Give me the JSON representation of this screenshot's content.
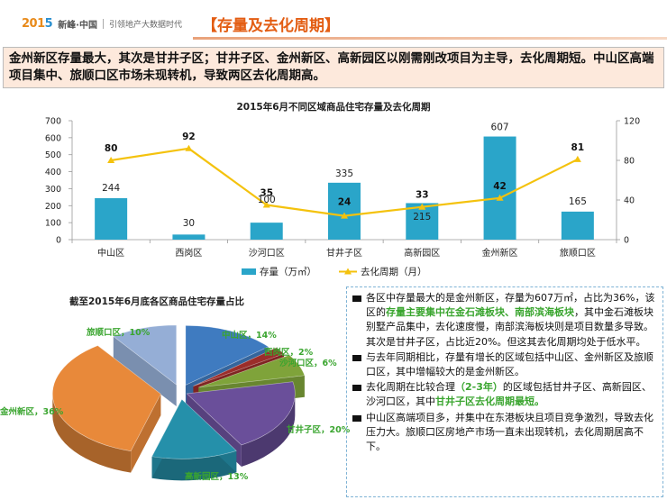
{
  "header": {
    "logo_year_left": "201",
    "logo_year_right": "5",
    "logo_brand": "新峰·中国",
    "logo_slogan": "引领地产大数据时代",
    "title": "【存量及去化周期】"
  },
  "summary": {
    "text": "金州新区存量最大，其次是甘井子区；甘井子区、金州新区、高新园区以刚需刚改项目为主导，去化周期短。中山区高端项目集中、旅顺口区市场未现转机，导致两区去化周期高。"
  },
  "chart_data": [
    {
      "type": "bar",
      "title": "2015年6月不同区域商品住宅存量及去化周期",
      "categories": [
        "中山区",
        "西岗区",
        "沙河口区",
        "甘井子区",
        "高新园区",
        "金州新区",
        "旅顺口区"
      ],
      "series": [
        {
          "name": "存量（万㎡）",
          "type": "bar",
          "axis": "left",
          "color": "#2aa5c9",
          "values": [
            244,
            30,
            100,
            335,
            215,
            607,
            165
          ]
        },
        {
          "name": "去化周期（月）",
          "type": "line",
          "axis": "right",
          "color": "#f4c20d",
          "values": [
            80,
            92,
            35,
            24,
            33,
            42,
            81
          ]
        }
      ],
      "ylim_left": [
        0,
        700
      ],
      "yticks_left": [
        0,
        100,
        200,
        300,
        400,
        500,
        600,
        700
      ],
      "ylim_right": [
        0,
        120
      ],
      "yticks_right": [
        0,
        40,
        80,
        120
      ],
      "legend": "bottom",
      "grid": false
    },
    {
      "type": "pie",
      "title": "截至2015年6月底各区商品住宅存量占比",
      "slices": [
        {
          "label": "中山区",
          "pct": "14%",
          "value": 14,
          "color": "#3f7bc0"
        },
        {
          "label": "西岗区",
          "pct": "2%",
          "value": 2,
          "color": "#9b2d2a"
        },
        {
          "label": "沙河口区",
          "pct": "6%",
          "value": 6,
          "color": "#7fa33a"
        },
        {
          "label": "甘井子区",
          "pct": "20%",
          "value": 20,
          "color": "#6a4f9a"
        },
        {
          "label": "高新园区",
          "pct": "13%",
          "value": 13,
          "color": "#2590aa"
        },
        {
          "label": "金州新区",
          "pct": "36%",
          "value": 36,
          "color": "#e8893a"
        },
        {
          "label": "旅顺口区",
          "pct": "10%",
          "value": 10,
          "color": "#95aed6"
        }
      ]
    }
  ],
  "notes": [
    {
      "parts": [
        {
          "t": "各区中存量最大的是金州新区，存量为607万㎡，占比为36%，该区的"
        },
        {
          "t": "存量主要集中在金石滩板块、南部滨海板块",
          "hl": true
        },
        {
          "t": "，其中金石滩板块别墅产品集中，去化速度慢，南部滨海板块则是项目数量多导致。其次是甘井子区，占比近20%。但这其去化周期均处于低水平。"
        }
      ]
    },
    {
      "parts": [
        {
          "t": "与去年同期相比，存量有增长的区域包括中山区、金州新区及旅顺口区，其中增幅较大的是金州新区。"
        }
      ]
    },
    {
      "parts": [
        {
          "t": "去化周期在比较合理"
        },
        {
          "t": "（2-3年）",
          "hl": true
        },
        {
          "t": "的区域包括甘井子区、高新园区、沙河口区，其中"
        },
        {
          "t": "甘井子区去化周期最短。",
          "hl": true
        }
      ]
    },
    {
      "parts": [
        {
          "t": "中山区高端项目多，并集中在东港板块且项目竞争激烈，导致去化压力大。旅顺口区房地产市场一直未出现转机，去化周期居高不下。"
        }
      ]
    }
  ]
}
